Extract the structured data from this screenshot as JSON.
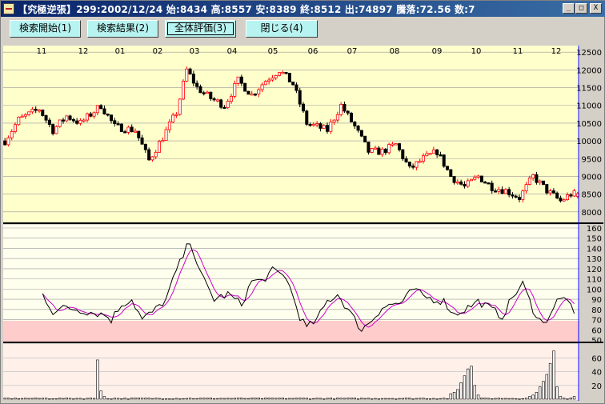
{
  "window": {
    "title": "【究極逆張】299:2002/12/24  始:8434  高:8557  安:8389  終:8512  出:74897  騰落:72.56  数:7",
    "controls": {
      "minimize": "_",
      "maximize": "□",
      "close": "X"
    }
  },
  "toolbar": {
    "buttons": [
      {
        "label": "検索開始(1)",
        "underline": "1"
      },
      {
        "label": "検索結果(2)",
        "underline": "2"
      },
      {
        "label": "全体評価(3)",
        "underline": "3",
        "selected": true
      },
      {
        "label": "閉じる(4)",
        "underline": "4"
      }
    ]
  },
  "colors": {
    "price_bg": "#ffffcc",
    "rsi_band": "#ffcccc",
    "up": "#ff0000",
    "down": "#000000",
    "ma": "#cc00cc",
    "axis_line": "#0000ff"
  },
  "chart_data": [
    {
      "type": "candlestick",
      "x": [
        "11",
        "12",
        "01",
        "02",
        "03",
        "04",
        "05",
        "06",
        "07",
        "08",
        "09",
        "10",
        "11",
        "12"
      ],
      "y_ticks": [
        8000,
        8500,
        9000,
        9500,
        10000,
        10500,
        11000,
        11500,
        12000,
        12500
      ],
      "ylim": [
        7950,
        12550
      ],
      "anchors": [
        [
          0,
          10000
        ],
        [
          4,
          10600
        ],
        [
          10,
          10900
        ],
        [
          14,
          10300
        ],
        [
          18,
          10700
        ],
        [
          22,
          10500
        ],
        [
          28,
          11000
        ],
        [
          32,
          10400
        ],
        [
          38,
          10300
        ],
        [
          42,
          9450
        ],
        [
          46,
          10100
        ],
        [
          50,
          10800
        ],
        [
          53,
          12000
        ],
        [
          56,
          11500
        ],
        [
          60,
          11200
        ],
        [
          64,
          11000
        ],
        [
          68,
          11700
        ],
        [
          72,
          11300
        ],
        [
          76,
          11700
        ],
        [
          80,
          12000
        ],
        [
          84,
          11600
        ],
        [
          88,
          10500
        ],
        [
          94,
          10300
        ],
        [
          98,
          11000
        ],
        [
          102,
          10400
        ],
        [
          106,
          9700
        ],
        [
          110,
          9700
        ],
        [
          114,
          9900
        ],
        [
          118,
          9200
        ],
        [
          122,
          9500
        ],
        [
          126,
          9700
        ],
        [
          130,
          9000
        ],
        [
          134,
          8700
        ],
        [
          138,
          9000
        ],
        [
          142,
          8700
        ],
        [
          146,
          8600
        ],
        [
          150,
          8400
        ],
        [
          154,
          9000
        ],
        [
          158,
          8600
        ],
        [
          162,
          8300
        ],
        [
          165,
          8500
        ]
      ],
      "last": {
        "open": 8434,
        "high": 8557,
        "low": 8389,
        "close": 8512
      }
    },
    {
      "type": "line",
      "y_ticks": [
        50,
        60,
        70,
        80,
        90,
        100,
        110,
        120,
        130,
        140,
        150,
        160
      ],
      "ylim": [
        50,
        160
      ],
      "band": [
        50,
        70
      ],
      "anchors": [
        [
          11,
          95
        ],
        [
          14,
          78
        ],
        [
          18,
          82
        ],
        [
          24,
          78
        ],
        [
          29,
          75
        ],
        [
          31,
          70
        ],
        [
          34,
          85
        ],
        [
          37,
          90
        ],
        [
          40,
          70
        ],
        [
          44,
          80
        ],
        [
          47,
          90
        ],
        [
          50,
          118
        ],
        [
          54,
          148
        ],
        [
          57,
          115
        ],
        [
          61,
          90
        ],
        [
          65,
          95
        ],
        [
          69,
          85
        ],
        [
          72,
          108
        ],
        [
          75,
          108
        ],
        [
          78,
          118
        ],
        [
          82,
          112
        ],
        [
          86,
          73
        ],
        [
          88,
          62
        ],
        [
          91,
          70
        ],
        [
          94,
          88
        ],
        [
          97,
          95
        ],
        [
          101,
          75
        ],
        [
          104,
          60
        ],
        [
          107,
          70
        ],
        [
          110,
          82
        ],
        [
          113,
          85
        ],
        [
          116,
          87
        ],
        [
          119,
          100
        ],
        [
          122,
          93
        ],
        [
          125,
          90
        ],
        [
          128,
          88
        ],
        [
          131,
          75
        ],
        [
          134,
          80
        ],
        [
          138,
          88
        ],
        [
          142,
          80
        ],
        [
          145,
          73
        ],
        [
          148,
          92
        ],
        [
          151,
          105
        ],
        [
          154,
          80
        ],
        [
          157,
          65
        ],
        [
          161,
          88
        ],
        [
          164,
          92
        ],
        [
          166,
          72
        ]
      ]
    },
    {
      "type": "bar",
      "y_ticks": [
        20,
        40,
        60
      ],
      "ylim": [
        0,
        72
      ],
      "values": [
        1,
        1,
        1,
        1,
        1,
        1,
        1,
        1,
        1,
        1,
        1,
        1,
        1,
        1,
        1,
        1,
        1,
        1,
        1,
        1,
        1,
        1,
        1,
        1,
        1,
        1,
        1,
        1,
        1,
        1,
        1,
        1,
        1,
        1,
        1,
        1,
        1,
        1,
        1,
        1,
        1,
        1,
        1,
        1,
        1,
        1,
        1,
        1,
        1,
        1,
        1,
        1,
        1,
        1,
        1,
        1,
        1,
        1,
        1,
        1,
        1,
        1,
        1,
        1,
        1,
        1,
        1,
        1,
        1,
        1,
        1,
        1,
        1,
        1,
        1,
        1,
        1,
        1,
        1,
        1,
        1,
        1,
        1,
        1,
        1,
        1,
        1,
        1,
        1,
        1,
        1,
        1,
        1,
        1,
        1,
        1,
        1,
        1,
        1,
        1,
        1,
        1,
        1,
        1,
        1,
        1,
        1,
        1,
        1,
        1,
        1,
        1,
        1,
        1,
        1,
        1,
        1,
        1,
        1,
        1,
        1,
        1,
        1,
        1,
        1,
        1,
        1,
        1,
        1,
        1,
        1,
        1,
        1,
        1,
        1,
        1,
        1,
        1,
        1,
        1,
        1,
        1,
        1,
        1,
        1,
        1,
        1,
        1,
        1,
        1,
        1,
        1,
        1,
        1,
        1,
        1,
        1,
        1,
        1,
        1,
        1,
        1,
        1,
        1,
        1,
        1,
        1
      ],
      "spikes": [
        [
          27,
          57
        ],
        [
          28,
          12
        ],
        [
          29,
          4
        ],
        [
          130,
          8
        ],
        [
          131,
          10
        ],
        [
          132,
          14
        ],
        [
          133,
          24
        ],
        [
          134,
          34
        ],
        [
          135,
          44
        ],
        [
          136,
          48
        ],
        [
          137,
          20
        ],
        [
          138,
          6
        ],
        [
          153,
          4
        ],
        [
          154,
          6
        ],
        [
          155,
          10
        ],
        [
          156,
          18
        ],
        [
          157,
          26
        ],
        [
          158,
          36
        ],
        [
          159,
          52
        ],
        [
          160,
          70
        ],
        [
          161,
          18
        ],
        [
          162,
          4
        ],
        [
          166,
          4
        ]
      ]
    }
  ]
}
